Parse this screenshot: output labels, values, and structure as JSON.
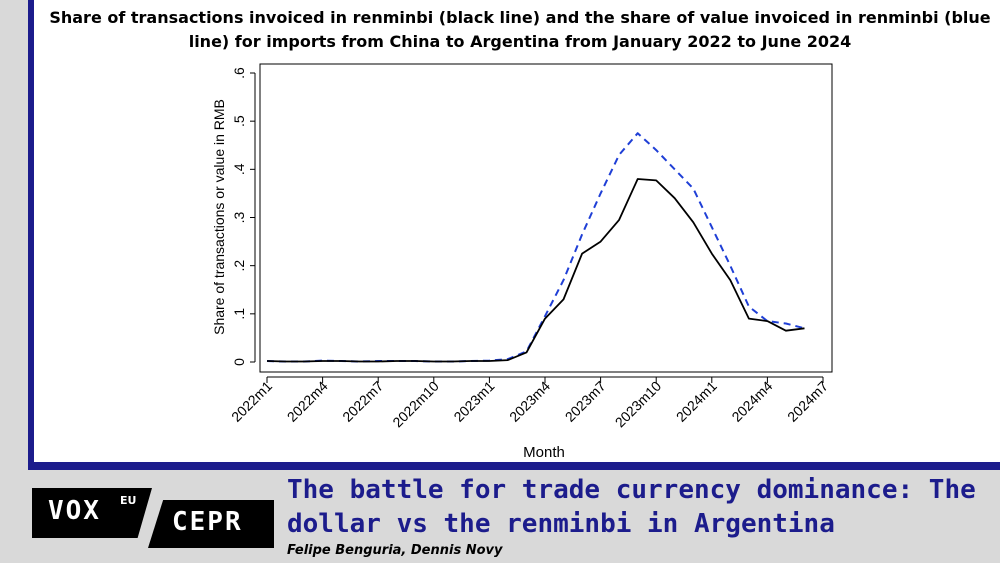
{
  "chart_data": {
    "type": "line",
    "title": "Share of transactions invoiced in renminbi (black line) and the share of value invoiced in renminbi (blue line) for imports from China to Argentina from January 2022 to June 2024",
    "xlabel": "Month",
    "ylabel": "Share of transactions or value in RMB",
    "ylim": [
      0,
      0.6
    ],
    "yticks": [
      0,
      0.1,
      0.2,
      0.3,
      0.4,
      0.5,
      0.6
    ],
    "ytick_labels": [
      "0",
      ".1",
      ".2",
      ".3",
      ".4",
      ".5",
      ".6"
    ],
    "x_range": [
      1,
      31
    ],
    "xticks": [
      1,
      4,
      7,
      10,
      13,
      16,
      19,
      22,
      25,
      28,
      31
    ],
    "xtick_labels": [
      "2022m1",
      "2022m4",
      "2022m7",
      "2022m10",
      "2023m1",
      "2023m4",
      "2023m7",
      "2023m10",
      "2024m1",
      "2024m4",
      "2024m7"
    ],
    "x": [
      1,
      2,
      3,
      4,
      5,
      6,
      7,
      8,
      9,
      10,
      11,
      12,
      13,
      14,
      15,
      16,
      17,
      18,
      19,
      20,
      21,
      22,
      23,
      24,
      25,
      26,
      27,
      28,
      29,
      30
    ],
    "series": [
      {
        "name": "Share of transactions",
        "color": "#000000",
        "style": "solid",
        "values": [
          0.002,
          0.001,
          0.001,
          0.002,
          0.002,
          0.001,
          0.001,
          0.002,
          0.002,
          0.001,
          0.001,
          0.002,
          0.002,
          0.004,
          0.02,
          0.09,
          0.13,
          0.225,
          0.25,
          0.295,
          0.38,
          0.377,
          0.34,
          0.29,
          0.225,
          0.17,
          0.09,
          0.085,
          0.065,
          0.07
        ]
      },
      {
        "name": "Share of value",
        "color": "#1f3fd6",
        "style": "dashed",
        "values": [
          0.002,
          0.001,
          0.001,
          0.003,
          0.002,
          0.001,
          0.002,
          0.002,
          0.002,
          0.001,
          0.001,
          0.002,
          0.003,
          0.006,
          0.022,
          0.095,
          0.17,
          0.265,
          0.35,
          0.43,
          0.475,
          0.44,
          0.4,
          0.36,
          0.28,
          0.2,
          0.115,
          0.085,
          0.08,
          0.07
        ]
      }
    ]
  },
  "footer": {
    "title": "The battle for trade currency dominance: The dollar vs the renminbi in Argentina",
    "authors": "Felipe Benguria, Dennis Novy",
    "logo_vox": "VOX",
    "logo_eu": "EU",
    "logo_cepr": "CEPR"
  }
}
